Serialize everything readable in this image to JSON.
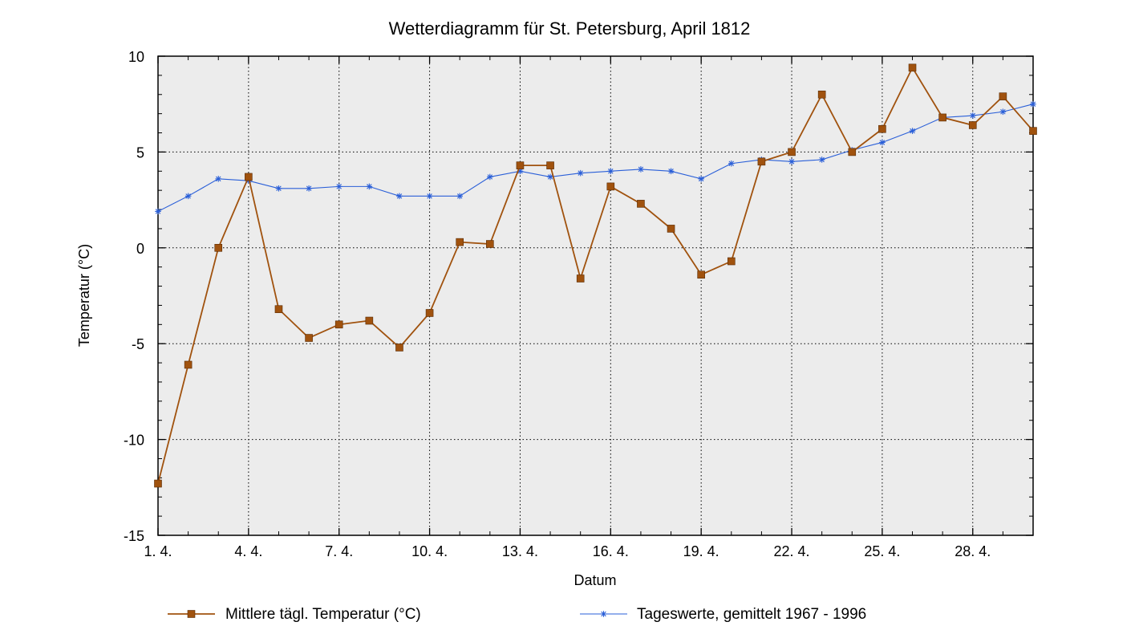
{
  "chart_data": {
    "type": "line",
    "title": "Wetterdiagramm für St. Petersburg, April 1812",
    "xlabel": "Datum",
    "ylabel": "Temperatur (°C)",
    "ylim": [
      -15,
      10
    ],
    "yticks": [
      -15,
      -10,
      -5,
      0,
      5,
      10
    ],
    "xlim": [
      1,
      30
    ],
    "x": [
      1,
      2,
      3,
      4,
      5,
      6,
      7,
      8,
      9,
      10,
      11,
      12,
      13,
      14,
      15,
      16,
      17,
      18,
      19,
      20,
      21,
      22,
      23,
      24,
      25,
      26,
      27,
      28,
      29,
      30
    ],
    "xtick_labels": [
      "1. 4.",
      "4. 4.",
      "7. 4.",
      "10. 4.",
      "13. 4.",
      "16. 4.",
      "19. 4.",
      "22. 4.",
      "25. 4.",
      "28. 4."
    ],
    "xtick_values": [
      1,
      4,
      7,
      10,
      13,
      16,
      19,
      22,
      25,
      28
    ],
    "grid": true,
    "background": "#ececec",
    "legend_position": "bottom",
    "series": [
      {
        "name": "Mittlere tägl. Temperatur (°C)",
        "color": "#a0520e",
        "marker": "square",
        "values": [
          -12.3,
          -6.1,
          0.0,
          3.7,
          -3.2,
          -4.7,
          -4.0,
          -3.8,
          -5.2,
          -3.4,
          0.3,
          0.2,
          4.3,
          4.3,
          -1.6,
          3.2,
          2.3,
          1.0,
          -1.4,
          -0.7,
          4.5,
          5.0,
          8.0,
          5.0,
          6.2,
          9.4,
          6.8,
          6.4,
          7.9,
          6.1
        ]
      },
      {
        "name": "Tageswerte, gemittelt 1967 - 1996",
        "color": "#2a5fd8",
        "marker": "asterisk",
        "values": [
          1.9,
          2.7,
          3.6,
          3.5,
          3.1,
          3.1,
          3.2,
          3.2,
          2.7,
          2.7,
          2.7,
          3.7,
          4.0,
          3.7,
          3.9,
          4.0,
          4.1,
          4.0,
          3.6,
          4.4,
          4.6,
          4.5,
          4.6,
          5.1,
          5.5,
          6.1,
          6.8,
          6.9,
          7.1,
          7.5
        ]
      }
    ]
  }
}
